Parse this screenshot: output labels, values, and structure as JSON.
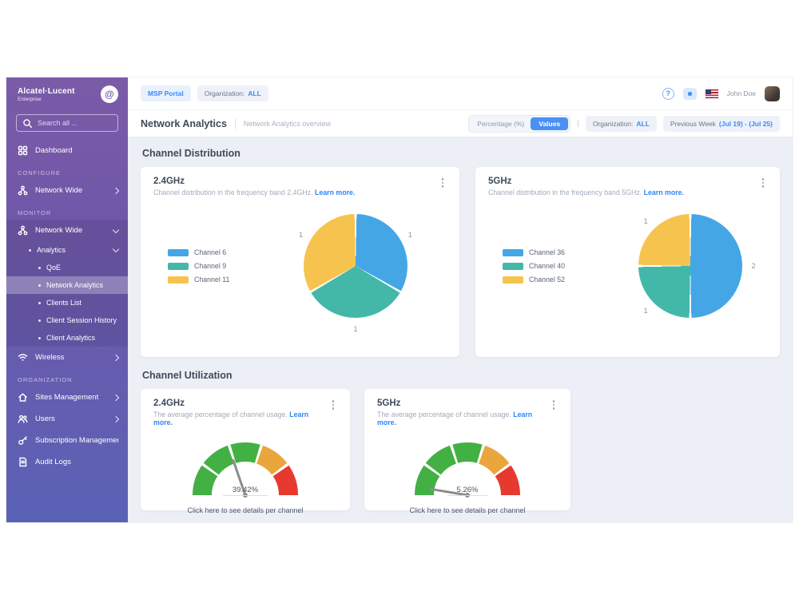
{
  "sidebar": {
    "brand": {
      "name": "Alcatel·Lucent",
      "sub": "Enterprise"
    },
    "search_placeholder": "Search all ...",
    "sections": {
      "configure": "CONFIGURE",
      "monitor": "MONITOR",
      "organization": "ORGANIZATION"
    },
    "items": [
      {
        "label": "Dashboard"
      },
      {
        "label": "Network Wide"
      },
      {
        "label": "Network Wide"
      },
      {
        "label": "Analytics"
      },
      {
        "label": "QoE"
      },
      {
        "label": "Network Analytics"
      },
      {
        "label": "Clients List"
      },
      {
        "label": "Client Session History"
      },
      {
        "label": "Client Analytics"
      },
      {
        "label": "Wireless"
      },
      {
        "label": "Sites Management"
      },
      {
        "label": "Users"
      },
      {
        "label": "Subscription Management"
      },
      {
        "label": "Audit Logs"
      }
    ]
  },
  "topbar": {
    "msp_chip": "MSP Portal",
    "org_label": "Organization:",
    "org_value": "ALL",
    "user_name": "John Doe"
  },
  "toolbar": {
    "title": "Network Analytics",
    "subtitle": "Network Analytics overview",
    "toggle_off": "Percentage (%)",
    "toggle_on": "Values",
    "pipe": "|",
    "org_label": "Organization:",
    "org_value": "ALL",
    "week_label": "Previous Week",
    "week_range": "(Jul 19) - (Jul 25)"
  },
  "sections": {
    "distribution": {
      "heading": "Channel Distribution",
      "cards": [
        {
          "title": "2.4GHz",
          "desc": "Channel distribution in the frequency band 2.4GHz.",
          "link": "Learn more."
        },
        {
          "title": "5GHz",
          "desc": "Channel distribution in the frequency band 5GHz.",
          "link": "Learn more."
        }
      ]
    },
    "utilization": {
      "heading": "Channel Utilization",
      "cards": [
        {
          "title": "2.4GHz",
          "desc": "The average percentage of channel usage.",
          "link": "Learn more.",
          "footer": "Click here to see details per channel"
        },
        {
          "title": "5GHz",
          "desc": "The average percentage of channel usage.",
          "link": "Learn more.",
          "footer": "Click here to see details per channel"
        }
      ]
    }
  },
  "chart_data": [
    {
      "type": "pie",
      "title": "2.4GHz Channel Distribution",
      "labels": [
        "Channel 6",
        "Channel 9",
        "Channel 11"
      ],
      "values": [
        1,
        1,
        1
      ],
      "colors": [
        "#45a6e6",
        "#43b8a9",
        "#f6c44e"
      ],
      "legend_position": "left",
      "start_angle_deg": 0
    },
    {
      "type": "pie",
      "title": "5GHz Channel Distribution",
      "labels": [
        "Channel 36",
        "Channel 40",
        "Channel 52"
      ],
      "values": [
        2,
        1,
        1
      ],
      "colors": [
        "#45a6e6",
        "#43b8a9",
        "#f6c44e"
      ],
      "legend_position": "left",
      "start_angle_deg": 0
    },
    {
      "type": "gauge",
      "title": "2.4GHz Channel Utilization",
      "value": 39.42,
      "display": "39.42%",
      "range": [
        0,
        100
      ],
      "bands": [
        {
          "from": 0,
          "to": 20,
          "color": "#43b043"
        },
        {
          "from": 20,
          "to": 40,
          "color": "#43b043"
        },
        {
          "from": 40,
          "to": 60,
          "color": "#43b043"
        },
        {
          "from": 60,
          "to": 80,
          "color": "#eaa63c"
        },
        {
          "from": 80,
          "to": 100,
          "color": "#e63a30"
        }
      ]
    },
    {
      "type": "gauge",
      "title": "5GHz Channel Utilization",
      "value": 5.26,
      "display": "5.26%",
      "range": [
        0,
        100
      ],
      "bands": [
        {
          "from": 0,
          "to": 20,
          "color": "#43b043"
        },
        {
          "from": 20,
          "to": 40,
          "color": "#43b043"
        },
        {
          "from": 40,
          "to": 60,
          "color": "#43b043"
        },
        {
          "from": 60,
          "to": 80,
          "color": "#eaa63c"
        },
        {
          "from": 80,
          "to": 100,
          "color": "#e63a30"
        }
      ]
    }
  ]
}
